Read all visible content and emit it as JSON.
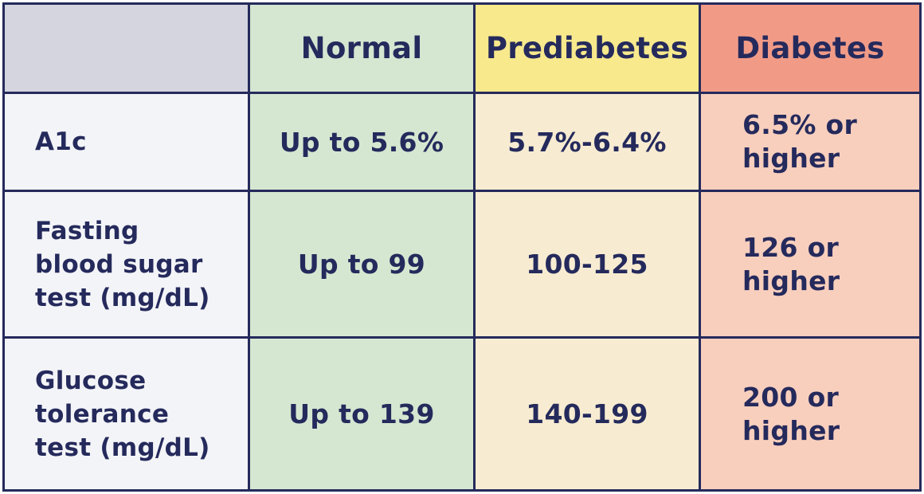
{
  "table": {
    "headers": [
      "",
      "Normal",
      "Prediabetes",
      "Diabetes"
    ],
    "rows": [
      {
        "label_lines": [
          "A1c"
        ],
        "normal": "Up to 5.6%",
        "prediabetes": "5.7%-6.4%",
        "diabetes_lines": [
          "6.5% or",
          "higher"
        ]
      },
      {
        "label_lines": [
          "Fasting",
          "blood sugar",
          "test (mg/dL)"
        ],
        "normal": "Up to 99",
        "prediabetes": "100-125",
        "diabetes_lines": [
          "126 or",
          "higher"
        ]
      },
      {
        "label_lines": [
          "Glucose",
          "tolerance",
          "test (mg/dL)"
        ],
        "normal": "Up to 139",
        "prediabetes": "140-199",
        "diabetes_lines": [
          "200 or",
          "higher"
        ]
      }
    ]
  },
  "colors": {
    "text": "#252a5c",
    "normal_header": "#d5e6d1",
    "prediabetes_header": "#f7e98c",
    "diabetes_header": "#f19b87",
    "normal_body": "#d6e7d1",
    "prediabetes_body": "#f7ecd2",
    "diabetes_body": "#f8cfbd",
    "label_column": "#f3f4f7",
    "corner": "#d4d5de"
  }
}
